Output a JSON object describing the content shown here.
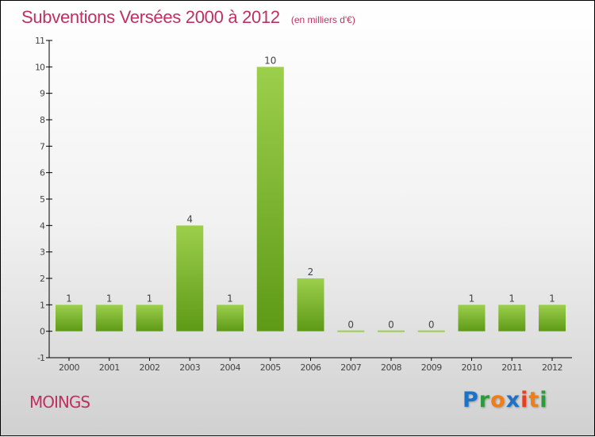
{
  "title": "Subventions Versées 2000 à 2012",
  "unit": "(en milliers d'€)",
  "commune": "MOINGS",
  "logo": {
    "text": "Proxiti",
    "colors": [
      "#1a73c8",
      "#2e9a3a",
      "#f07d16",
      "#1a73c8",
      "#e8401c",
      "#f07d16",
      "#2e9a3a"
    ]
  },
  "colors": {
    "bar_top": "#9ccf4c",
    "bar_bottom": "#5e9a16",
    "title": "#c0305f"
  },
  "chart_data": {
    "type": "bar",
    "title": "Subventions Versées 2000 à 2012",
    "ylabel": "(en milliers d'€)",
    "categories": [
      "2000",
      "2001",
      "2002",
      "2003",
      "2004",
      "2005",
      "2006",
      "2007",
      "2008",
      "2009",
      "2010",
      "2011",
      "2012"
    ],
    "values": [
      1,
      1,
      1,
      4,
      1,
      10,
      2,
      0,
      0,
      0,
      1,
      1,
      1
    ],
    "ylim": [
      -1,
      11
    ],
    "yticks": [
      -1,
      0,
      1,
      2,
      3,
      4,
      5,
      6,
      7,
      8,
      9,
      10,
      11
    ],
    "grid": false
  }
}
